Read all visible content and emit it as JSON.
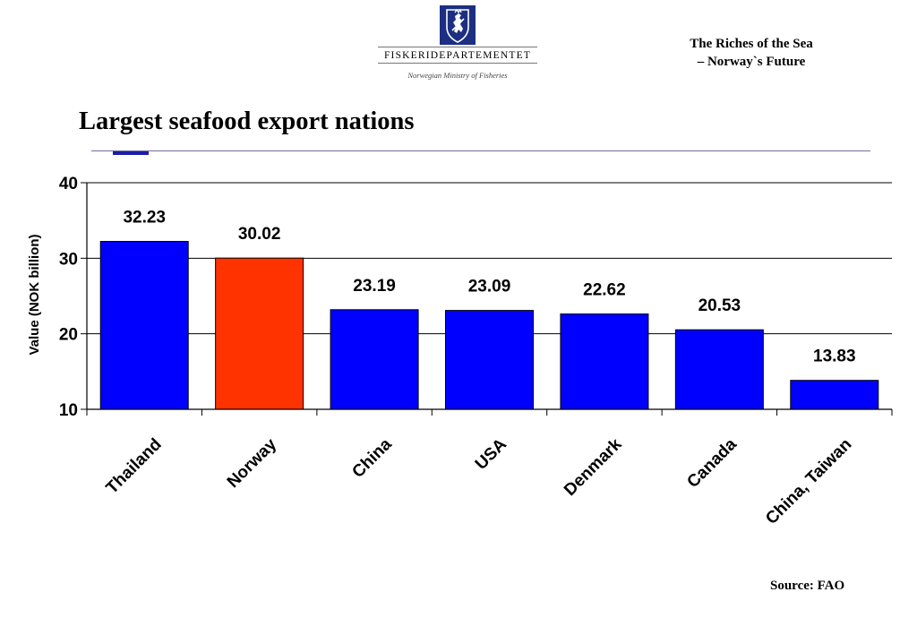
{
  "header": {
    "ministry_name": "FISKERIDEPARTEMENTET",
    "ministry_sub": "Norwegian Ministry of Fisheries",
    "tagline_line1": "The Riches of the Sea",
    "tagline_line2": "– Norway`s Future",
    "logo_icon": "coat-of-arms-icon"
  },
  "colors": {
    "default_bar": "#0000ff",
    "highlight_bar": "#ff3300",
    "logo_blue": "#1c2f82",
    "title_rule": "#6f6fa0"
  },
  "chart_data": {
    "type": "bar",
    "title": "Largest seafood export nations",
    "xlabel": "",
    "ylabel": "Value (NOK billion)",
    "ylim": [
      10,
      40
    ],
    "yticks": [
      10,
      20,
      30,
      40
    ],
    "grid": true,
    "categories": [
      "Thailand",
      "Norway",
      "China",
      "USA",
      "Denmark",
      "Canada",
      "China, Taiwan"
    ],
    "values": [
      32.23,
      30.02,
      23.19,
      23.09,
      22.62,
      20.53,
      13.83
    ],
    "value_labels": [
      "32.23",
      "30.02",
      "23.19",
      "23.09",
      "22.62",
      "20.53",
      "13.83"
    ],
    "highlight_category": "Norway"
  },
  "footer": {
    "source": "Source: FAO"
  }
}
